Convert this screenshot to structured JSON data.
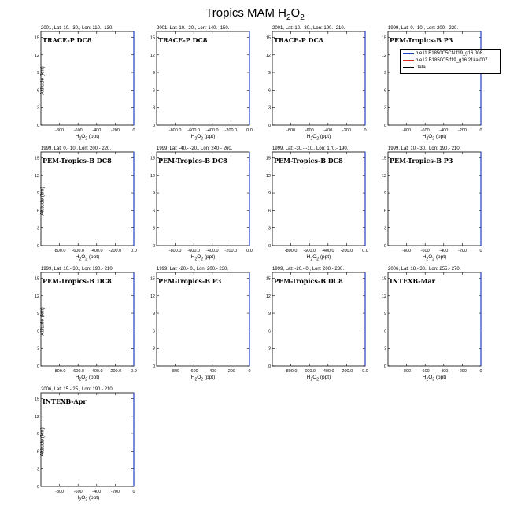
{
  "title_main": "Tropics MAM H",
  "title_sub": "2",
  "title_tail": "O",
  "title_sub2": "2",
  "xlabel_main": "H",
  "xlabel_sub": "2",
  "xlabel_tail": "O",
  "xlabel_sub2": "2",
  "xlabel_unit": " (ppt)",
  "ylabel": "Altitude (km)",
  "legend": {
    "items": [
      {
        "label": "b.e11.B1850C5CN.f19_g16.008",
        "color": "#1f3fbf"
      },
      {
        "label": "b.e12.B1850C5.f19_g16.21ka.007",
        "color": "#d62a1e"
      },
      {
        "label": "Data",
        "color": "#000000"
      }
    ]
  },
  "chart_data": [
    {
      "type": "line",
      "header": "2001, Lat: 10.- 30., Lon: 110.- 130.",
      "campaign": "TRACE-P DC8",
      "xlim": [
        -1000,
        0
      ],
      "ylim": [
        0,
        16
      ],
      "xticks": [
        "-800",
        "-600",
        "-400",
        "-200",
        "0"
      ],
      "yticks": [
        "0",
        "3",
        "6",
        "9",
        "12",
        "15"
      ],
      "series": [
        {
          "x": [
            0,
            0
          ],
          "y": [
            0,
            16
          ]
        }
      ]
    },
    {
      "type": "line",
      "header": "2001, Lat: 10.- 20., Lon: 140.- 150.",
      "campaign": "TRACE-P DC8",
      "xlim": [
        -1000,
        0
      ],
      "ylim": [
        0,
        16
      ],
      "xticks": [
        "-800.0",
        "-600.0",
        "-400.0",
        "-200.0",
        "0.0"
      ],
      "yticks": [
        "0",
        "3",
        "6",
        "9",
        "12",
        "15"
      ],
      "series": [
        {
          "x": [
            0,
            0
          ],
          "y": [
            0,
            16
          ]
        }
      ]
    },
    {
      "type": "line",
      "header": "2001, Lat: 10.- 30., Lon: 190.- 210.",
      "campaign": "TRACE-P DC8",
      "xlim": [
        -1000,
        0
      ],
      "ylim": [
        0,
        16
      ],
      "xticks": [
        "-800",
        "-600",
        "-400",
        "-200",
        "0"
      ],
      "yticks": [
        "0",
        "3",
        "6",
        "9",
        "12",
        "15"
      ],
      "series": [
        {
          "x": [
            0,
            0
          ],
          "y": [
            0,
            16
          ]
        }
      ]
    },
    {
      "type": "line",
      "header": "1999, Lat: 0.- 10., Lon: 200.- 220.",
      "campaign": "PEM-Tropics-B P3",
      "xlim": [
        -1000,
        0
      ],
      "ylim": [
        0,
        16
      ],
      "xticks": [
        "-800",
        "-600",
        "-400",
        "-200",
        "0"
      ],
      "yticks": [
        "0",
        "3",
        "6",
        "9",
        "12",
        "15"
      ],
      "series": [
        {
          "x": [
            0,
            0
          ],
          "y": [
            0,
            16
          ]
        }
      ]
    },
    {
      "type": "line",
      "header": "1999, Lat: 0.- 10., Lon: 200.- 220.",
      "campaign": "PEM-Tropics-B DC8",
      "xlim": [
        -1000,
        0
      ],
      "ylim": [
        0,
        16
      ],
      "xticks": [
        "-800.0",
        "-600.0",
        "-400.0",
        "-200.0",
        "0.0"
      ],
      "yticks": [
        "0",
        "3",
        "6",
        "9",
        "12",
        "15"
      ],
      "series": [
        {
          "x": [
            0,
            0
          ],
          "y": [
            0,
            16
          ]
        }
      ]
    },
    {
      "type": "line",
      "header": "1999, Lat: -40.- -20., Lon: 240.- 260.",
      "campaign": "PEM-Tropics-B DC8",
      "xlim": [
        -1000,
        0
      ],
      "ylim": [
        0,
        16
      ],
      "xticks": [
        "-800.0",
        "-600.0",
        "-400.0",
        "-200.0",
        "0.0"
      ],
      "yticks": [
        "0",
        "3",
        "6",
        "9",
        "12",
        "15"
      ],
      "series": [
        {
          "x": [
            0,
            0
          ],
          "y": [
            0,
            16
          ]
        }
      ]
    },
    {
      "type": "line",
      "header": "1999, Lat: -30.- -10., Lon: 170.- 190.",
      "campaign": "PEM-Tropics-B DC8",
      "xlim": [
        -1000,
        0
      ],
      "ylim": [
        0,
        16
      ],
      "xticks": [
        "-800.0",
        "-600.0",
        "-400.0",
        "-200.0",
        "0.0"
      ],
      "yticks": [
        "0",
        "3",
        "6",
        "9",
        "12",
        "15"
      ],
      "series": [
        {
          "x": [
            0,
            0
          ],
          "y": [
            0,
            16
          ]
        }
      ]
    },
    {
      "type": "line",
      "header": "1999, Lat: 10.- 30., Lon: 190.- 210.",
      "campaign": "PEM-Tropics-B P3",
      "xlim": [
        -1000,
        0
      ],
      "ylim": [
        0,
        16
      ],
      "xticks": [
        "-800",
        "-600",
        "-400",
        "-200",
        "0"
      ],
      "yticks": [
        "0",
        "3",
        "6",
        "9",
        "12",
        "15"
      ],
      "series": [
        {
          "x": [
            0,
            0
          ],
          "y": [
            0,
            16
          ]
        }
      ]
    },
    {
      "type": "line",
      "header": "1999, Lat: 10.- 30., Lon: 190.- 210.",
      "campaign": "PEM-Tropics-B DC8",
      "xlim": [
        -1000,
        0
      ],
      "ylim": [
        0,
        16
      ],
      "xticks": [
        "-800.0",
        "-600.0",
        "-400.0",
        "-200.0",
        "0.0"
      ],
      "yticks": [
        "0",
        "3",
        "6",
        "9",
        "12",
        "15"
      ],
      "series": [
        {
          "x": [
            0,
            0
          ],
          "y": [
            0,
            16
          ]
        }
      ]
    },
    {
      "type": "line",
      "header": "1999, Lat: -20.- 0., Lon: 200.- 230.",
      "campaign": "PEM-Tropics-B P3",
      "xlim": [
        -1000,
        0
      ],
      "ylim": [
        0,
        16
      ],
      "xticks": [
        "-800",
        "-600",
        "-400",
        "-200",
        "0"
      ],
      "yticks": [
        "0",
        "3",
        "6",
        "9",
        "12",
        "15"
      ],
      "series": [
        {
          "x": [
            0,
            0
          ],
          "y": [
            0,
            16
          ]
        }
      ]
    },
    {
      "type": "line",
      "header": "1999, Lat: -20.- 0., Lon: 200.- 230.",
      "campaign": "PEM-Tropics-B DC8",
      "xlim": [
        -1000,
        0
      ],
      "ylim": [
        0,
        16
      ],
      "xticks": [
        "-800.0",
        "-600.0",
        "-400.0",
        "-200.0",
        "0.0"
      ],
      "yticks": [
        "0",
        "3",
        "6",
        "9",
        "12",
        "15"
      ],
      "series": [
        {
          "x": [
            0,
            0
          ],
          "y": [
            0,
            16
          ]
        }
      ]
    },
    {
      "type": "line",
      "header": "2006, Lat: 18.- 30., Lon: 255.- 270.",
      "campaign": "INTEXB-Mar",
      "xlim": [
        -1000,
        0
      ],
      "ylim": [
        0,
        16
      ],
      "xticks": [
        "-800",
        "-600",
        "-400",
        "-200",
        "0"
      ],
      "yticks": [
        "0",
        "3",
        "6",
        "9",
        "12",
        "15"
      ],
      "series": [
        {
          "x": [
            0,
            0
          ],
          "y": [
            0,
            16
          ]
        }
      ]
    },
    {
      "type": "line",
      "header": "2006, Lat: 15.- 25., Lon: 190.- 210.",
      "campaign": "INTEXB-Apr",
      "xlim": [
        -1000,
        0
      ],
      "ylim": [
        0,
        16
      ],
      "xticks": [
        "-800",
        "-600",
        "-400",
        "-200",
        "0"
      ],
      "yticks": [
        "0",
        "3",
        "6",
        "9",
        "12",
        "15"
      ],
      "series": [
        {
          "x": [
            0,
            0
          ],
          "y": [
            0,
            16
          ]
        }
      ]
    }
  ]
}
